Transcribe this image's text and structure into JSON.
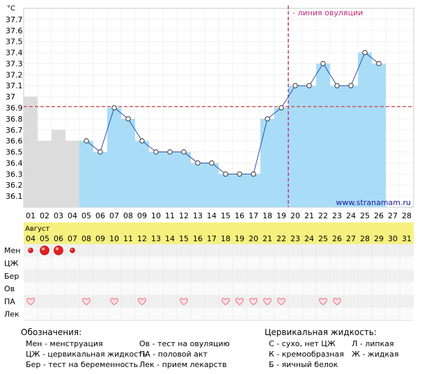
{
  "chart_data": {
    "type": "bar+line",
    "title": "",
    "y_unit": "°C",
    "ylim": [
      36.0,
      37.8
    ],
    "y_ticks": [
      "37.7",
      "37.6",
      "37.5",
      "37.4",
      "37.3",
      "37.2",
      "37.1",
      "37",
      "36.9",
      "36.8",
      "36.7",
      "36.6",
      "36.5",
      "36.4",
      "36.3",
      "36.2",
      "36.1"
    ],
    "y_tick_values": [
      37.7,
      37.6,
      37.5,
      37.4,
      37.3,
      37.2,
      37.1,
      37.0,
      36.9,
      36.8,
      36.7,
      36.6,
      36.5,
      36.4,
      36.3,
      36.2,
      36.1
    ],
    "cycle_days": [
      "01",
      "02",
      "03",
      "04",
      "05",
      "06",
      "07",
      "08",
      "09",
      "10",
      "11",
      "12",
      "13",
      "14",
      "15",
      "16",
      "17",
      "18",
      "19",
      "20",
      "21",
      "22",
      "23",
      "24",
      "25",
      "26",
      "27",
      "28"
    ],
    "month_label": "Август",
    "calendar_dates": [
      "04",
      "05",
      "06",
      "07",
      "08",
      "09",
      "10",
      "11",
      "12",
      "13",
      "14",
      "15",
      "16",
      "17",
      "18",
      "19",
      "20",
      "21",
      "22",
      "23",
      "24",
      "25",
      "26",
      "27",
      "28",
      "29",
      "30",
      "31"
    ],
    "values": [
      37.0,
      36.6,
      36.7,
      36.6,
      36.6,
      36.5,
      36.9,
      36.8,
      36.6,
      36.5,
      36.5,
      36.5,
      36.4,
      36.4,
      36.3,
      36.3,
      36.3,
      36.8,
      36.9,
      37.1,
      37.1,
      37.3,
      37.1,
      37.1,
      37.4,
      37.3,
      null,
      null
    ],
    "menstruation_days": [
      1,
      2,
      3,
      4
    ],
    "markers_from_day": 5,
    "coverline": 36.91,
    "ovulation_line_after_day": 19,
    "ovulation_label": "- линия овуляции",
    "watermark": "www.stranamam.ru",
    "colors": {
      "period_bar": "#dcdcdc",
      "bar": "#a9dcf6",
      "line": "#2b50b2",
      "ovulation": "#c0287c",
      "coverline": "#d04040",
      "month_band": "#f6f07f",
      "heart": "#ee8090",
      "drop": "#e02020"
    },
    "table_rows": [
      {
        "label": "Мен",
        "key": "men"
      },
      {
        "label": "ЦЖ",
        "key": "cj"
      },
      {
        "label": "Бер",
        "key": "ber"
      },
      {
        "label": "Ов",
        "key": "ov"
      },
      {
        "label": "ПА",
        "key": "pa"
      },
      {
        "label": "Лек",
        "key": "lek"
      }
    ],
    "men_intensity": [
      1,
      3,
      3,
      1,
      0,
      0,
      0,
      0,
      0,
      0,
      0,
      0,
      0,
      0,
      0,
      0,
      0,
      0,
      0,
      0,
      0,
      0,
      0,
      0,
      0,
      0,
      0,
      0
    ],
    "pa_days": [
      1,
      5,
      7,
      9,
      12,
      15,
      16,
      17,
      18,
      19,
      22,
      23
    ]
  },
  "legend": {
    "title": "Обозначения:",
    "items_left": [
      "Мен - менструация",
      "ЦЖ - цервикальная жидкость",
      "Бер - тест на беременность"
    ],
    "items_mid": [
      "Ов - тест на овуляцию",
      "ПА - половой акт",
      "Лек - прием лекарств"
    ]
  },
  "cervical": {
    "title": "Цервикальная жидкость:",
    "items_left": [
      "С - сухо, нет ЦЖ",
      "К - кремообразная",
      "Б - яичный белок"
    ],
    "items_right": [
      "Л - липкая",
      "Ж - жидкая"
    ]
  }
}
